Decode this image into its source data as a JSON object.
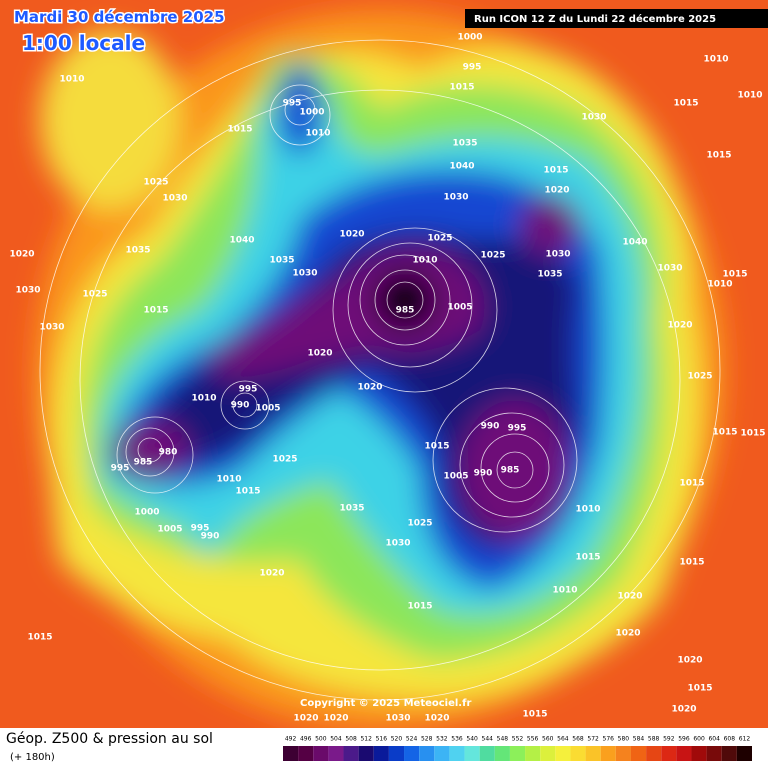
{
  "header": {
    "date": "Mardi 30 décembre 2025",
    "time": "1:00 locale",
    "run": "Run ICON 12 Z du Lundi 22 décembre 2025"
  },
  "isobar_labels": [
    1000,
    995,
    1015,
    1010,
    1010,
    1015,
    995,
    1000,
    1010,
    1025,
    1030,
    1020,
    1030,
    1025,
    1030,
    1015,
    1035,
    1040,
    1035,
    1030,
    1020,
    1010,
    985,
    1005,
    1025,
    1035,
    1040,
    1030,
    1030,
    1015,
    1020,
    1025,
    1030,
    1035,
    1040,
    1030,
    1015,
    1010,
    995,
    990,
    1005,
    1010,
    980,
    985,
    995,
    1020,
    1020,
    1015,
    990,
    995,
    985,
    990,
    1005,
    1010,
    1015,
    1010,
    1025,
    1030,
    1035,
    1025,
    1015,
    1010,
    1000,
    1005,
    995,
    990,
    1020,
    1015,
    1020,
    1020,
    1015,
    1015,
    1020,
    1020,
    1030,
    1020,
    1015,
    1015,
    1020,
    1025,
    1015,
    1015,
    1015,
    1020,
    1015,
    1020,
    1010,
    1015
  ],
  "copyright": "Copyright © 2025 Meteociel.fr",
  "footer": {
    "title": "Géop. Z500 & pression au sol",
    "subtitle": "(+ 180h)"
  },
  "colorbar": {
    "values": [
      492,
      496,
      500,
      504,
      508,
      512,
      516,
      520,
      524,
      528,
      532,
      536,
      540,
      544,
      548,
      552,
      556,
      560,
      564,
      568,
      572,
      576,
      580,
      584,
      588,
      592,
      596,
      600,
      604,
      608,
      612
    ],
    "colors": [
      "#3d0033",
      "#550044",
      "#6a0a6a",
      "#7a1a8a",
      "#4b1a8a",
      "#1a0a70",
      "#0a1a9a",
      "#0a3cc8",
      "#1464e6",
      "#2890f0",
      "#3cb4f5",
      "#50d2f0",
      "#64e6dc",
      "#50dca0",
      "#64e678",
      "#8cf05a",
      "#b4f046",
      "#dcf03c",
      "#f5f03c",
      "#fadc32",
      "#fac328",
      "#faa01e",
      "#f5821e",
      "#f06414",
      "#e64614",
      "#dc2814",
      "#c81414",
      "#a00a0a",
      "#780a0a",
      "#500a0a",
      "#1e0000"
    ]
  }
}
